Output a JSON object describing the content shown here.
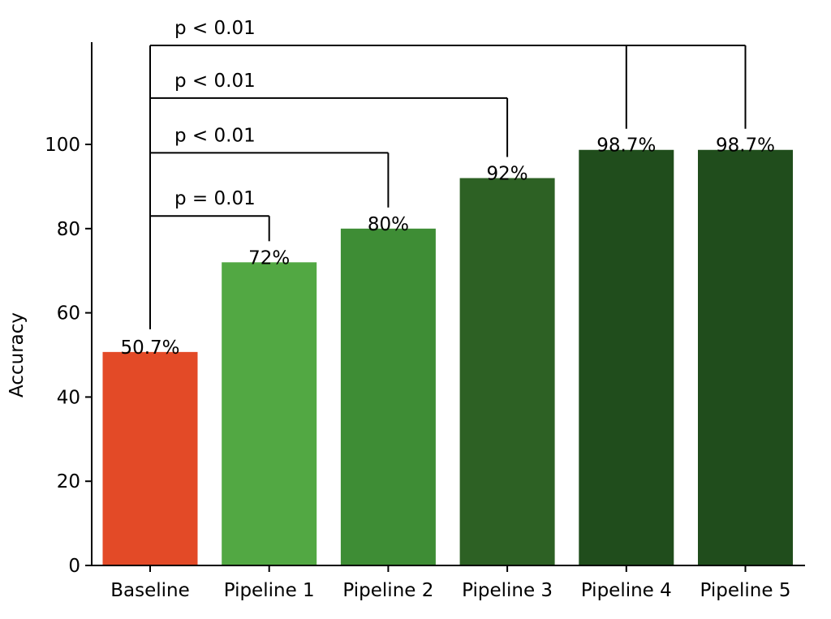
{
  "chart_data": {
    "type": "bar",
    "title": "",
    "xlabel": "",
    "ylabel": "Accuracy",
    "ylim": [
      0,
      100
    ],
    "yticks": [
      0,
      20,
      40,
      60,
      80,
      100
    ],
    "grid": false,
    "categories": [
      "Baseline",
      "Pipeline 1",
      "Pipeline 2",
      "Pipeline 3",
      "Pipeline 4",
      "Pipeline 5"
    ],
    "values": [
      50.7,
      72,
      80,
      92,
      98.7,
      98.7
    ],
    "value_labels": [
      "50.7%",
      "72%",
      "80%",
      "92%",
      "98.7%",
      "98.7%"
    ],
    "bar_colors": [
      "#e34a27",
      "#52a843",
      "#3e8d35",
      "#2d6124",
      "#204d1c",
      "#204d1c"
    ],
    "annotations": [
      {
        "from": "Baseline",
        "to": [
          "Pipeline 1"
        ],
        "text": "p = 0.01",
        "y": 83
      },
      {
        "from": "Baseline",
        "to": [
          "Pipeline 2"
        ],
        "text": "p < 0.01",
        "y": 98
      },
      {
        "from": "Baseline",
        "to": [
          "Pipeline 3"
        ],
        "text": "p < 0.01",
        "y": 111
      },
      {
        "from": "Baseline",
        "to": [
          "Pipeline 4",
          "Pipeline 5"
        ],
        "text": "p < 0.01",
        "y": 123.5
      }
    ]
  }
}
